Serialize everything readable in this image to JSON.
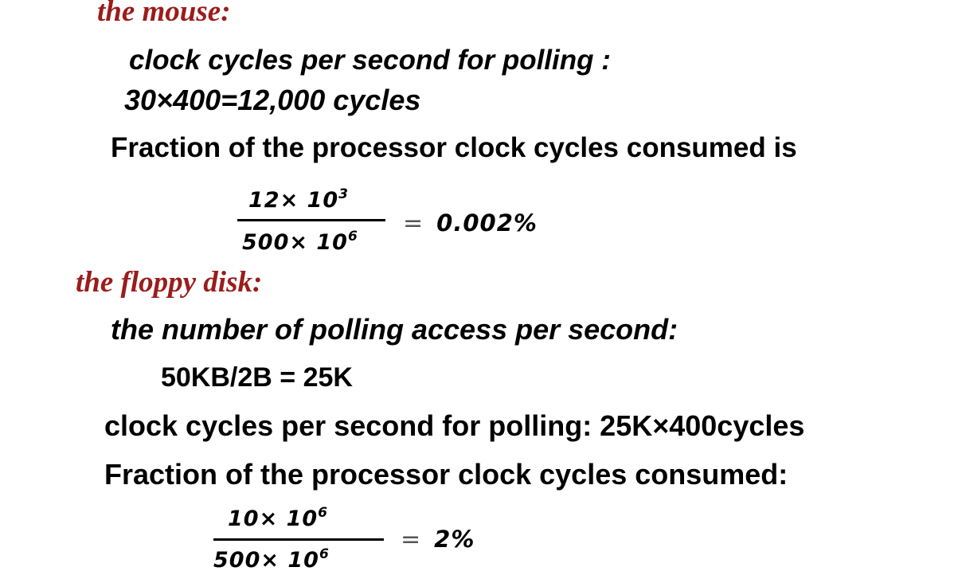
{
  "mouse": {
    "heading": "the mouse:",
    "polling_label": "clock cycles per second for polling :",
    "polling_calc": "30×400=12,000 cycles",
    "fraction_label": "Fraction of the processor clock cycles consumed is",
    "fraction": {
      "num_base": "12× 10",
      "num_exp": "3",
      "den_base": "500× 10",
      "den_exp": "6",
      "result": "0.002%",
      "equals": "="
    }
  },
  "floppy": {
    "heading": "the floppy disk:",
    "access_label": "the number of polling access per second:",
    "access_calc": "50KB/2B = 25K",
    "polling_label": "clock cycles per second for polling: 25K×400cycles",
    "fraction_label": "Fraction of the processor clock cycles consumed:",
    "fraction": {
      "num_base": "10× 10",
      "num_exp": "6",
      "den_base": "500× 10",
      "den_exp": "6",
      "result": "2%",
      "equals": "="
    }
  },
  "colors": {
    "heading": "#9b1c1c",
    "text": "#000000",
    "background": "#ffffff"
  }
}
